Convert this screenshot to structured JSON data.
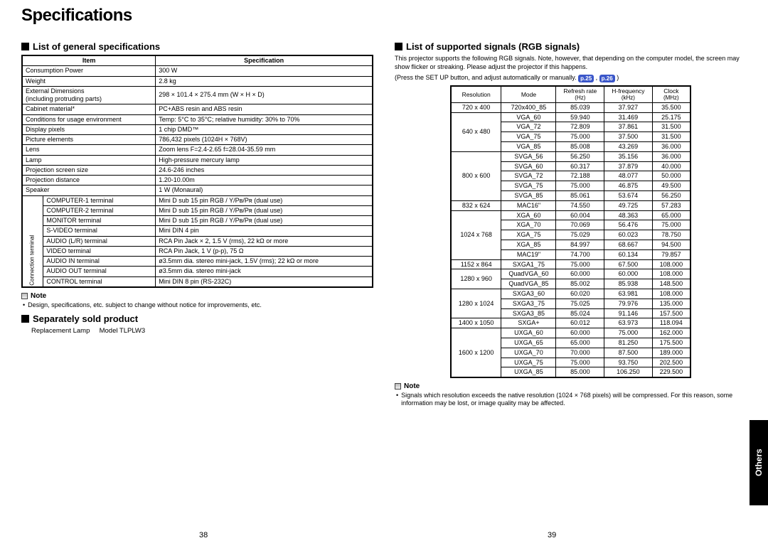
{
  "title": "Specifications",
  "left": {
    "h_general": "List of general specifications",
    "table_headers": [
      "Item",
      "Specification"
    ],
    "rows_plain": [
      [
        "Consumption Power",
        "300 W"
      ],
      [
        "Weight",
        "2.8 kg"
      ],
      [
        "External Dimensions\n(including protruding parts)",
        "298 × 101.4 × 275.4 mm (W × H × D)"
      ],
      [
        "Cabinet material*",
        "PC+ABS resin and ABS resin"
      ],
      [
        "Conditions for usage environment",
        "Temp: 5°C to 35°C; relative humidity: 30% to 70%"
      ],
      [
        "Display pixels",
        "1 chip DMD™"
      ],
      [
        "Picture elements",
        "786,432 pixels (1024H × 768V)"
      ],
      [
        "Lens",
        "Zoom lens   F=2.4-2.65   f=28.04-35.59 mm"
      ],
      [
        "Lamp",
        "High-pressure mercury lamp"
      ],
      [
        "Projection screen size",
        "24.6-246 inches"
      ],
      [
        "Projection distance",
        "1.20-10.00m"
      ],
      [
        "Speaker",
        "1 W (Monaural)"
      ]
    ],
    "conn_label": "Connection terminal",
    "rows_conn": [
      [
        "COMPUTER-1 terminal",
        "Mini D sub 15 pin   RGB / Y/Pʙ/Pʀ (dual use)"
      ],
      [
        "COMPUTER-2 terminal",
        "Mini D sub 15 pin   RGB / Y/Pʙ/Pʀ (dual use)"
      ],
      [
        "MONITOR terminal",
        "Mini D sub 15 pin   RGB / Y/Pʙ/Pʀ (dual use)"
      ],
      [
        "S-VIDEO terminal",
        "Mini DIN 4 pin"
      ],
      [
        "AUDIO (L/R) terminal",
        "RCA Pin Jack × 2, 1.5 V (rms), 22 kΩ or more"
      ],
      [
        "VIDEO terminal",
        "RCA Pin Jack, 1 V (p-p), 75 Ω"
      ],
      [
        "AUDIO IN terminal",
        "ø3.5mm dia. stereo mini-jack, 1.5V (rms); 22 kΩ or more"
      ],
      [
        "AUDIO OUT terminal",
        "ø3.5mm dia. stereo mini-jack"
      ],
      [
        "CONTROL terminal",
        "Mini DIN 8 pin (RS-232C)"
      ]
    ],
    "note_label": "Note",
    "note_text": "Design, specifications, etc. subject to change without notice for improvements, etc.",
    "h_sep": "Separately sold product",
    "lamp_line_a": "Replacement Lamp",
    "lamp_line_b": "Model TLPLW3",
    "pagenum": "38"
  },
  "right": {
    "h_sig": "List of supported signals (RGB signals)",
    "intro": "This projector supports the following RGB signals. Note, however, that depending on the computer model, the screen may show flicker or streaking. Please adjust the projector if this happens.",
    "press_a": "(Press the SET UP button, and adjust automatically or manually. ",
    "badge1": "p.25",
    "comma": " , ",
    "badge2": "p.26",
    "press_b": " )",
    "headers": [
      "Resolution",
      "Mode",
      "Refresh rate",
      "H-frequency",
      "Clock"
    ],
    "header_units": [
      "",
      "",
      "(Hz)",
      "(kHz)",
      "(MHz)"
    ],
    "rows": [
      {
        "res": {
          "t": "720 x 400",
          "span": 1
        },
        "cells": [
          "720x400_85",
          "85.039",
          "37.927",
          "35.500"
        ]
      },
      {
        "res": {
          "t": "640 x 480",
          "span": 4
        },
        "cells": [
          "VGA_60",
          "59.940",
          "31.469",
          "25.175"
        ]
      },
      {
        "cells": [
          "VGA_72",
          "72.809",
          "37.861",
          "31.500"
        ]
      },
      {
        "cells": [
          "VGA_75",
          "75.000",
          "37.500",
          "31.500"
        ]
      },
      {
        "cells": [
          "VGA_85",
          "85.008",
          "43.269",
          "36.000"
        ]
      },
      {
        "res": {
          "t": "800 x 600",
          "span": 5
        },
        "cells": [
          "SVGA_56",
          "56.250",
          "35.156",
          "36.000"
        ]
      },
      {
        "cells": [
          "SVGA_60",
          "60.317",
          "37.879",
          "40.000"
        ]
      },
      {
        "cells": [
          "SVGA_72",
          "72.188",
          "48.077",
          "50.000"
        ]
      },
      {
        "cells": [
          "SVGA_75",
          "75.000",
          "46.875",
          "49.500"
        ]
      },
      {
        "cells": [
          "SVGA_85",
          "85.061",
          "53.674",
          "56.250"
        ]
      },
      {
        "res": {
          "t": "832 x 624",
          "span": 1
        },
        "cells": [
          "MAC16\"",
          "74.550",
          "49.725",
          "57.283"
        ]
      },
      {
        "res": {
          "t": "1024 x 768",
          "span": 5
        },
        "cells": [
          "XGA_60",
          "60.004",
          "48.363",
          "65.000"
        ]
      },
      {
        "cells": [
          "XGA_70",
          "70.069",
          "56.476",
          "75.000"
        ]
      },
      {
        "cells": [
          "XGA_75",
          "75.029",
          "60.023",
          "78.750"
        ]
      },
      {
        "cells": [
          "XGA_85",
          "84.997",
          "68.667",
          "94.500"
        ]
      },
      {
        "cells": [
          "MAC19\"",
          "74.700",
          "60.134",
          "79.857"
        ]
      },
      {
        "res": {
          "t": "1152 x 864",
          "span": 1
        },
        "cells": [
          "SXGA1_75",
          "75.000",
          "67.500",
          "108.000"
        ]
      },
      {
        "res": {
          "t": "1280 x 960",
          "span": 2
        },
        "cells": [
          "QuadVGA_60",
          "60.000",
          "60.000",
          "108.000"
        ]
      },
      {
        "cells": [
          "QuadVGA_85",
          "85.002",
          "85.938",
          "148.500"
        ]
      },
      {
        "res": {
          "t": "1280 x 1024",
          "span": 3
        },
        "cells": [
          "SXGA3_60",
          "60.020",
          "63.981",
          "108.000"
        ]
      },
      {
        "cells": [
          "SXGA3_75",
          "75.025",
          "79.976",
          "135.000"
        ]
      },
      {
        "cells": [
          "SXGA3_85",
          "85.024",
          "91.146",
          "157.500"
        ]
      },
      {
        "res": {
          "t": "1400 x 1050",
          "span": 1
        },
        "cells": [
          "SXGA+",
          "60.012",
          "63.973",
          "118.094"
        ]
      },
      {
        "res": {
          "t": "1600 x 1200",
          "span": 5
        },
        "cells": [
          "UXGA_60",
          "60.000",
          "75.000",
          "162.000"
        ]
      },
      {
        "cells": [
          "UXGA_65",
          "65.000",
          "81.250",
          "175.500"
        ]
      },
      {
        "cells": [
          "UXGA_70",
          "70.000",
          "87.500",
          "189.000"
        ]
      },
      {
        "cells": [
          "UXGA_75",
          "75.000",
          "93.750",
          "202.500"
        ]
      },
      {
        "cells": [
          "UXGA_85",
          "85.000",
          "106.250",
          "229.500"
        ]
      }
    ],
    "note_label": "Note",
    "note_text": "Signals which resolution exceeds the native resolution (1024 × 768 pixels) will be compressed. For this reason, some information may be lost, or image quality may be affected.",
    "pagenum": "39"
  },
  "side_tab": "Others"
}
